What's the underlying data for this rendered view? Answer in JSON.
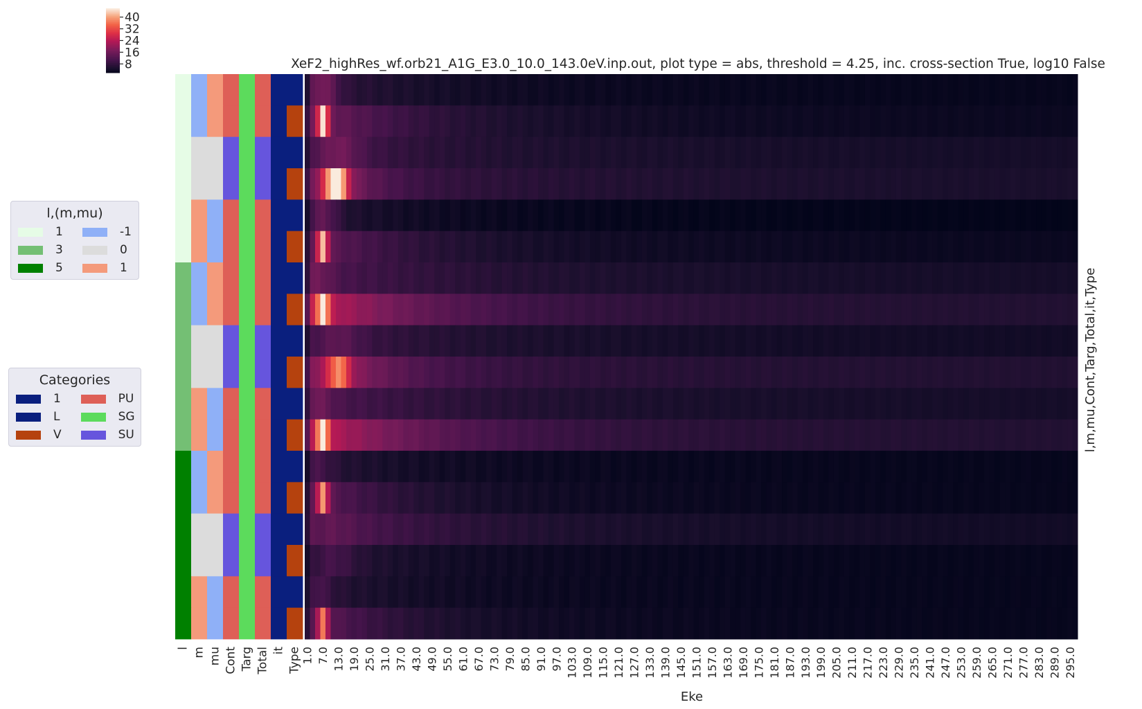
{
  "chart_data": {
    "type": "heatmap",
    "title": "XeF2_highRes_wf.orb21_A1G_E3.0_10.0_143.0eV.inp.out, plot type = abs, threshold = 4.25, inc. cross-section True, log10 False",
    "xlabel": "Eke",
    "ylabel": "l,m,mu,Cont,Targ,Total,it,Type",
    "x_tick_labels": [
      "1.0",
      "7.0",
      "13.0",
      "19.0",
      "25.0",
      "31.0",
      "37.0",
      "43.0",
      "49.0",
      "55.0",
      "61.0",
      "67.0",
      "73.0",
      "79.0",
      "85.0",
      "91.0",
      "97.0",
      "103.0",
      "109.0",
      "115.0",
      "121.0",
      "127.0",
      "133.0",
      "139.0",
      "145.0",
      "151.0",
      "157.0",
      "163.0",
      "169.0",
      "175.0",
      "181.0",
      "187.0",
      "193.0",
      "199.0",
      "205.0",
      "211.0",
      "217.0",
      "223.0",
      "229.0",
      "235.0",
      "241.0",
      "247.0",
      "253.0",
      "259.0",
      "265.0",
      "271.0",
      "277.0",
      "283.0",
      "289.0",
      "295.0"
    ],
    "x_start": 1.0,
    "x_step": 2.0,
    "n_x": 149,
    "colormap": "rocket",
    "colorbar": {
      "ticks": [
        8,
        16,
        24,
        32,
        40
      ],
      "vmin": 2,
      "vmax": 46
    },
    "annotation_columns": [
      "l",
      "m",
      "mu",
      "Cont",
      "Targ",
      "Total",
      "it",
      "Type"
    ],
    "rows": [
      {
        "l": "1",
        "m": "-1",
        "mu": "1",
        "Cont": "PU",
        "Targ": "SG",
        "Total": "PU",
        "it": "1",
        "Type": "L",
        "peak": 12,
        "peak_x": 7.0,
        "width": 4,
        "base": 3.5,
        "tail": 3,
        "decay": 25,
        "far": 2.5
      },
      {
        "l": "1",
        "m": "-1",
        "mu": "1",
        "Cont": "PU",
        "Targ": "SG",
        "Total": "PU",
        "it": "1",
        "Type": "V",
        "peak": 38,
        "peak_x": 7.0,
        "width": 1.5,
        "base": 9,
        "tail": 5,
        "decay": 30,
        "far": 3
      },
      {
        "l": "1",
        "m": "0",
        "mu": "0",
        "Cont": "SU",
        "Targ": "SG",
        "Total": "SU",
        "it": "1",
        "Type": "L",
        "peak": 9,
        "peak_x": 13.0,
        "width": 6,
        "base": 4,
        "tail": 4,
        "decay": 20,
        "far": 4.5
      },
      {
        "l": "1",
        "m": "0",
        "mu": "0",
        "Cont": "SU",
        "Targ": "SG",
        "Total": "SU",
        "it": "1",
        "Type": "V",
        "peak": 44,
        "peak_x": 12.0,
        "width": 3,
        "base": 14,
        "tail": 6,
        "decay": 12,
        "far": 5
      },
      {
        "l": "1",
        "m": "1",
        "mu": "-1",
        "Cont": "PU",
        "Targ": "SG",
        "Total": "PU",
        "it": "1",
        "Type": "L",
        "peak": 10,
        "peak_x": 7.0,
        "width": 4,
        "base": 3,
        "tail": 2.5,
        "decay": 20,
        "far": 2
      },
      {
        "l": "1",
        "m": "1",
        "mu": "-1",
        "Cont": "PU",
        "Targ": "SG",
        "Total": "PU",
        "it": "1",
        "Type": "V",
        "peak": 36,
        "peak_x": 7.0,
        "width": 1.5,
        "base": 8,
        "tail": 4,
        "decay": 30,
        "far": 3
      },
      {
        "l": "3",
        "m": "-1",
        "mu": "1",
        "Cont": "PU",
        "Targ": "SG",
        "Total": "PU",
        "it": "1",
        "Type": "L",
        "peak": 8,
        "peak_x": 5.0,
        "width": 4,
        "base": 4,
        "tail": 4,
        "decay": 40,
        "far": 4.5
      },
      {
        "l": "3",
        "m": "-1",
        "mu": "1",
        "Cont": "PU",
        "Targ": "SG",
        "Total": "PU",
        "it": "1",
        "Type": "V",
        "peak": 40,
        "peak_x": 7.0,
        "width": 1.5,
        "base": 12,
        "tail": 8,
        "decay": 35,
        "far": 6
      },
      {
        "l": "3",
        "m": "0",
        "mu": "0",
        "Cont": "SU",
        "Targ": "SG",
        "Total": "SU",
        "it": "1",
        "Type": "L",
        "peak": 7,
        "peak_x": 13.0,
        "width": 6,
        "base": 3.5,
        "tail": 3.5,
        "decay": 30,
        "far": 4
      },
      {
        "l": "3",
        "m": "0",
        "mu": "0",
        "Cont": "SU",
        "Targ": "SG",
        "Total": "SU",
        "it": "1",
        "Type": "V",
        "peak": 28,
        "peak_x": 13.0,
        "width": 3,
        "base": 12,
        "tail": 6,
        "decay": 20,
        "far": 6
      },
      {
        "l": "3",
        "m": "1",
        "mu": "-1",
        "Cont": "PU",
        "Targ": "SG",
        "Total": "PU",
        "it": "1",
        "Type": "L",
        "peak": 8,
        "peak_x": 5.0,
        "width": 4,
        "base": 4,
        "tail": 4,
        "decay": 40,
        "far": 4.5
      },
      {
        "l": "3",
        "m": "1",
        "mu": "-1",
        "Cont": "PU",
        "Targ": "SG",
        "Total": "PU",
        "it": "1",
        "Type": "V",
        "peak": 40,
        "peak_x": 7.0,
        "width": 1.5,
        "base": 12,
        "tail": 8,
        "decay": 35,
        "far": 6
      },
      {
        "l": "5",
        "m": "-1",
        "mu": "1",
        "Cont": "PU",
        "Targ": "SG",
        "Total": "PU",
        "it": "1",
        "Type": "L",
        "peak": 6,
        "peak_x": 5.0,
        "width": 4,
        "base": 3,
        "tail": 2.5,
        "decay": 20,
        "far": 2.5
      },
      {
        "l": "5",
        "m": "-1",
        "mu": "1",
        "Cont": "PU",
        "Targ": "SG",
        "Total": "PU",
        "it": "1",
        "Type": "V",
        "peak": 34,
        "peak_x": 7.0,
        "width": 1.5,
        "base": 8,
        "tail": 4,
        "decay": 25,
        "far": 2.5
      },
      {
        "l": "5",
        "m": "0",
        "mu": "0",
        "Cont": "SU",
        "Targ": "SG",
        "Total": "SU",
        "it": "1",
        "Type": "L",
        "peak": 6,
        "peak_x": 11.0,
        "width": 6,
        "base": 5,
        "tail": 5,
        "decay": 35,
        "far": 4
      },
      {
        "l": "5",
        "m": "0",
        "mu": "0",
        "Cont": "SU",
        "Targ": "SG",
        "Total": "SU",
        "it": "1",
        "Type": "V",
        "peak": 6,
        "peak_x": 11.0,
        "width": 6,
        "base": 3,
        "tail": 2.5,
        "decay": 25,
        "far": 2.5
      },
      {
        "l": "5",
        "m": "1",
        "mu": "-1",
        "Cont": "PU",
        "Targ": "SG",
        "Total": "PU",
        "it": "1",
        "Type": "L",
        "peak": 6,
        "peak_x": 5.0,
        "width": 4,
        "base": 3,
        "tail": 2.5,
        "decay": 20,
        "far": 2.5
      },
      {
        "l": "5",
        "m": "1",
        "mu": "-1",
        "Cont": "PU",
        "Targ": "SG",
        "Total": "PU",
        "it": "1",
        "Type": "V",
        "peak": 30,
        "peak_x": 7.0,
        "width": 1.5,
        "base": 8,
        "tail": 4,
        "decay": 25,
        "far": 2.5
      }
    ]
  },
  "legends": {
    "lmmu": {
      "title": "l,(m,mu)",
      "items": [
        {
          "label": "1",
          "color": "#e6fce6"
        },
        {
          "label": "-1",
          "color": "#8fb0f7"
        },
        {
          "label": "3",
          "color": "#74bf74"
        },
        {
          "label": "0",
          "color": "#dcdcdc"
        },
        {
          "label": "5",
          "color": "#008000"
        },
        {
          "label": "1",
          "color": "#f49a7b"
        }
      ]
    },
    "categories": {
      "title": "Categories",
      "items": [
        {
          "label": "1",
          "color": "#0a1f7e"
        },
        {
          "label": "PU",
          "color": "#de5f57"
        },
        {
          "label": "L",
          "color": "#0a1f7e"
        },
        {
          "label": "SG",
          "color": "#5cdb5c"
        },
        {
          "label": "V",
          "color": "#b5420e"
        },
        {
          "label": "SU",
          "color": "#6655dd"
        }
      ]
    }
  },
  "colors": {
    "l": {
      "1": "#e6fce6",
      "3": "#74bf74",
      "5": "#008000"
    },
    "mmu": {
      "-1": "#8fb0f7",
      "0": "#dcdcdc",
      "1": "#f49a7b"
    },
    "cat": {
      "1": "#0a1f7e",
      "L": "#0a1f7e",
      "V": "#b5420e",
      "PU": "#de5f57",
      "SG": "#5cdb5c",
      "SU": "#6655dd"
    }
  }
}
